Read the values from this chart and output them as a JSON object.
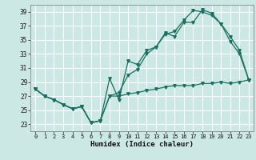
{
  "xlabel": "Humidex (Indice chaleur)",
  "bg_color": "#cce8e4",
  "grid_color": "#ffffff",
  "line_color": "#1a7060",
  "xlim": [
    -0.5,
    23.5
  ],
  "ylim": [
    22,
    40
  ],
  "yticks": [
    23,
    25,
    27,
    29,
    31,
    33,
    35,
    37,
    39
  ],
  "xticks": [
    0,
    1,
    2,
    3,
    4,
    5,
    6,
    7,
    8,
    9,
    10,
    11,
    12,
    13,
    14,
    15,
    16,
    17,
    18,
    19,
    20,
    21,
    22,
    23
  ],
  "line1_x": [
    0,
    1,
    2,
    3,
    4,
    5,
    6,
    7,
    8,
    9,
    10,
    11,
    12,
    13,
    14,
    15,
    16,
    17,
    18,
    19,
    20,
    21,
    22,
    23
  ],
  "line1_y": [
    28,
    27,
    26.5,
    25.8,
    25.2,
    25.5,
    23.2,
    23.5,
    29.5,
    26.5,
    32.0,
    31.5,
    33.5,
    34.0,
    36.0,
    35.5,
    37.5,
    37.5,
    39.3,
    38.8,
    37.3,
    35.5,
    33.5,
    29.3
  ],
  "line2_x": [
    0,
    1,
    2,
    3,
    4,
    5,
    6,
    7,
    8,
    9,
    10,
    11,
    12,
    13,
    14,
    15,
    16,
    17,
    18,
    19,
    20,
    21,
    22,
    23
  ],
  "line2_y": [
    28,
    27,
    26.5,
    25.8,
    25.2,
    25.5,
    23.2,
    23.5,
    27.0,
    27.5,
    30.0,
    30.8,
    33.0,
    34.0,
    35.8,
    36.2,
    37.8,
    39.2,
    39.0,
    38.5,
    37.3,
    34.8,
    33.0,
    29.3
  ],
  "line3_x": [
    0,
    1,
    2,
    3,
    4,
    5,
    6,
    7,
    8,
    9,
    10,
    11,
    12,
    13,
    14,
    15,
    16,
    17,
    18,
    19,
    20,
    21,
    22,
    23
  ],
  "line3_y": [
    28,
    27,
    26.5,
    25.8,
    25.2,
    25.5,
    23.2,
    23.5,
    27.0,
    27.0,
    27.3,
    27.5,
    27.8,
    28.0,
    28.3,
    28.5,
    28.5,
    28.5,
    28.8,
    28.8,
    29.0,
    28.8,
    29.0,
    29.3
  ]
}
